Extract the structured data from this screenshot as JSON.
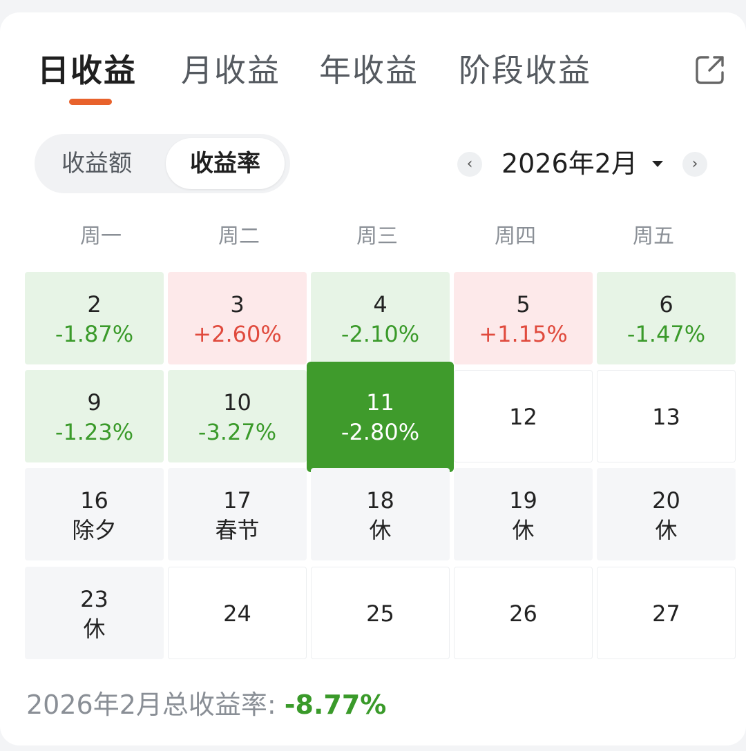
{
  "tabs": [
    {
      "label": "日收益",
      "active": true
    },
    {
      "label": "月收益",
      "active": false
    },
    {
      "label": "年收益",
      "active": false
    },
    {
      "label": "阶段收益",
      "active": false
    }
  ],
  "toggle": {
    "amount_label": "收益额",
    "rate_label": "收益率",
    "selected": "收益率"
  },
  "month_nav": {
    "label": "2026年2月",
    "prev_icon": "chevron-left-icon",
    "next_icon": "chevron-right-icon"
  },
  "weekdays": [
    "周一",
    "周二",
    "周三",
    "周四",
    "周五"
  ],
  "calendar": {
    "rows": [
      [
        {
          "day": "2",
          "value": "-1.87%",
          "state": "negative"
        },
        {
          "day": "3",
          "value": "+2.60%",
          "state": "positive"
        },
        {
          "day": "4",
          "value": "-2.10%",
          "state": "negative"
        },
        {
          "day": "5",
          "value": "+1.15%",
          "state": "positive"
        },
        {
          "day": "6",
          "value": "-1.47%",
          "state": "negative"
        }
      ],
      [
        {
          "day": "9",
          "value": "-1.23%",
          "state": "negative"
        },
        {
          "day": "10",
          "value": "-3.27%",
          "state": "negative"
        },
        {
          "day": "11",
          "value": "-2.80%",
          "state": "selected"
        },
        {
          "day": "12",
          "value": "",
          "state": "empty"
        },
        {
          "day": "13",
          "value": "",
          "state": "empty"
        }
      ],
      [
        {
          "day": "16",
          "value": "除夕",
          "state": "holiday"
        },
        {
          "day": "17",
          "value": "春节",
          "state": "holiday"
        },
        {
          "day": "18",
          "value": "休",
          "state": "holiday"
        },
        {
          "day": "19",
          "value": "休",
          "state": "holiday"
        },
        {
          "day": "20",
          "value": "休",
          "state": "holiday"
        }
      ],
      [
        {
          "day": "23",
          "value": "休",
          "state": "holiday"
        },
        {
          "day": "24",
          "value": "",
          "state": "empty"
        },
        {
          "day": "25",
          "value": "",
          "state": "empty"
        },
        {
          "day": "26",
          "value": "",
          "state": "empty"
        },
        {
          "day": "27",
          "value": "",
          "state": "empty"
        }
      ]
    ]
  },
  "summary": {
    "label": "2026年2月总收益率: ",
    "value": "-8.77%"
  },
  "colors": {
    "accent": "#e8622c",
    "gain": "#e04a3d",
    "loss": "#3a9a2a",
    "selected": "#3f9b2c"
  }
}
